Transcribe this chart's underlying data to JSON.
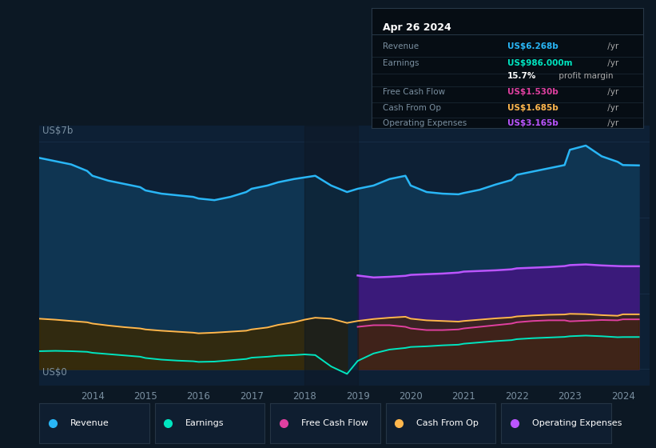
{
  "bg_color": "#0c1824",
  "plot_bg_color": "#0d2035",
  "years_x": [
    2013.0,
    2013.3,
    2013.6,
    2013.9,
    2014.0,
    2014.3,
    2014.6,
    2014.9,
    2015.0,
    2015.3,
    2015.6,
    2015.9,
    2016.0,
    2016.3,
    2016.6,
    2016.9,
    2017.0,
    2017.3,
    2017.5,
    2017.8,
    2018.0,
    2018.2,
    2018.5,
    2018.8,
    2019.0,
    2019.3,
    2019.6,
    2019.9,
    2020.0,
    2020.3,
    2020.6,
    2020.9,
    2021.0,
    2021.3,
    2021.6,
    2021.9,
    2022.0,
    2022.3,
    2022.6,
    2022.9,
    2023.0,
    2023.3,
    2023.6,
    2023.9,
    2024.0,
    2024.3
  ],
  "revenue": [
    6.5,
    6.4,
    6.3,
    6.1,
    5.95,
    5.8,
    5.7,
    5.6,
    5.5,
    5.4,
    5.35,
    5.3,
    5.25,
    5.2,
    5.3,
    5.45,
    5.55,
    5.65,
    5.75,
    5.85,
    5.9,
    5.95,
    5.65,
    5.45,
    5.55,
    5.65,
    5.85,
    5.95,
    5.65,
    5.45,
    5.4,
    5.38,
    5.42,
    5.52,
    5.68,
    5.82,
    5.98,
    6.08,
    6.18,
    6.28,
    6.75,
    6.88,
    6.55,
    6.38,
    6.28,
    6.27
  ],
  "earnings": [
    0.55,
    0.56,
    0.55,
    0.53,
    0.5,
    0.46,
    0.42,
    0.38,
    0.34,
    0.29,
    0.26,
    0.24,
    0.22,
    0.23,
    0.27,
    0.31,
    0.35,
    0.38,
    0.41,
    0.43,
    0.45,
    0.43,
    0.08,
    -0.15,
    0.25,
    0.48,
    0.6,
    0.65,
    0.68,
    0.7,
    0.73,
    0.75,
    0.78,
    0.82,
    0.86,
    0.89,
    0.92,
    0.95,
    0.97,
    0.99,
    1.01,
    1.03,
    1.01,
    0.98,
    0.985,
    0.986
  ],
  "cash_from_op": [
    1.55,
    1.52,
    1.48,
    1.44,
    1.4,
    1.34,
    1.29,
    1.25,
    1.22,
    1.18,
    1.15,
    1.12,
    1.1,
    1.12,
    1.15,
    1.18,
    1.22,
    1.28,
    1.36,
    1.44,
    1.52,
    1.58,
    1.55,
    1.42,
    1.48,
    1.54,
    1.58,
    1.61,
    1.55,
    1.5,
    1.48,
    1.46,
    1.48,
    1.52,
    1.56,
    1.59,
    1.62,
    1.65,
    1.67,
    1.68,
    1.7,
    1.69,
    1.66,
    1.64,
    1.685,
    1.685
  ],
  "free_cash_flow_pre2019": [
    0.0,
    0.0,
    0.0,
    0.0,
    0.0,
    0.0,
    0.0,
    0.0,
    0.0,
    0.0,
    0.0,
    0.0,
    0.0,
    0.0,
    0.0,
    0.0,
    0.0,
    0.0,
    0.0,
    0.0,
    0.0,
    0.0,
    0.0,
    0.0,
    0.0,
    0.0,
    0.0,
    0.0,
    0.0,
    0.0,
    0.0,
    0.0,
    0.0,
    0.0,
    0.0,
    0.0,
    0.0,
    0.0,
    0.0,
    0.0,
    0.0,
    0.0,
    0.0,
    0.0,
    0.0,
    0.0
  ],
  "free_cash_flow": [
    0.0,
    0.0,
    0.0,
    0.0,
    0.0,
    0.0,
    0.0,
    0.0,
    0.0,
    0.0,
    0.0,
    0.0,
    0.0,
    0.0,
    0.0,
    0.0,
    0.0,
    0.0,
    0.0,
    0.0,
    0.0,
    0.0,
    0.0,
    0.0,
    1.3,
    1.35,
    1.35,
    1.3,
    1.25,
    1.2,
    1.2,
    1.22,
    1.25,
    1.3,
    1.35,
    1.4,
    1.44,
    1.48,
    1.5,
    1.5,
    1.47,
    1.49,
    1.51,
    1.5,
    1.53,
    1.53
  ],
  "op_expenses": [
    0.0,
    0.0,
    0.0,
    0.0,
    0.0,
    0.0,
    0.0,
    0.0,
    0.0,
    0.0,
    0.0,
    0.0,
    0.0,
    0.0,
    0.0,
    0.0,
    0.0,
    0.0,
    0.0,
    0.0,
    0.0,
    0.0,
    0.0,
    0.0,
    2.88,
    2.82,
    2.84,
    2.87,
    2.9,
    2.92,
    2.94,
    2.97,
    3.0,
    3.02,
    3.04,
    3.07,
    3.1,
    3.12,
    3.14,
    3.17,
    3.2,
    3.22,
    3.19,
    3.17,
    3.165,
    3.165
  ],
  "revenue_line_color": "#29b6f6",
  "earnings_line_color": "#00e5c0",
  "fcf_line_color": "#e040a0",
  "cashop_line_color": "#ffb74d",
  "opex_line_color": "#bb55ff",
  "revenue_fill_color": "#0f3552",
  "earnings_fill_color_pre": "#2a3a3a",
  "opex_fill_color": "#3a1a7a",
  "fcf_fill_color": "#5a1545",
  "cashop_fill_color": "#3a2800",
  "earnings_fill_color_post": "#3a2a5a",
  "xmin": 2013.0,
  "xmax": 2024.5,
  "ymin": -0.5,
  "ymax": 7.5,
  "grid_color": "#1e3550",
  "tooltip_bg": "#060d14",
  "tooltip_border": "#283848",
  "tooltip_title": "Apr 26 2024",
  "tooltip_items": [
    {
      "label": "Revenue",
      "value": "US$6.268b /yr",
      "color": "#29b6f6"
    },
    {
      "label": "Earnings",
      "value": "US$986.000m /yr",
      "color": "#00e5c0"
    },
    {
      "label": "",
      "value": "15.7% profit margin",
      "color": "#cccccc"
    },
    {
      "label": "Free Cash Flow",
      "value": "US$1.530b /yr",
      "color": "#e040a0"
    },
    {
      "label": "Cash From Op",
      "value": "US$1.685b /yr",
      "color": "#ffb74d"
    },
    {
      "label": "Operating Expenses",
      "value": "US$3.165b /yr",
      "color": "#bb55ff"
    }
  ],
  "legend_items": [
    {
      "label": "Revenue",
      "color": "#29b6f6"
    },
    {
      "label": "Earnings",
      "color": "#00e5c0"
    },
    {
      "label": "Free Cash Flow",
      "color": "#e040a0"
    },
    {
      "label": "Cash From Op",
      "color": "#ffb74d"
    },
    {
      "label": "Operating Expenses",
      "color": "#bb55ff"
    }
  ],
  "xticks": [
    2014,
    2015,
    2016,
    2017,
    2018,
    2019,
    2020,
    2021,
    2022,
    2023,
    2024
  ]
}
